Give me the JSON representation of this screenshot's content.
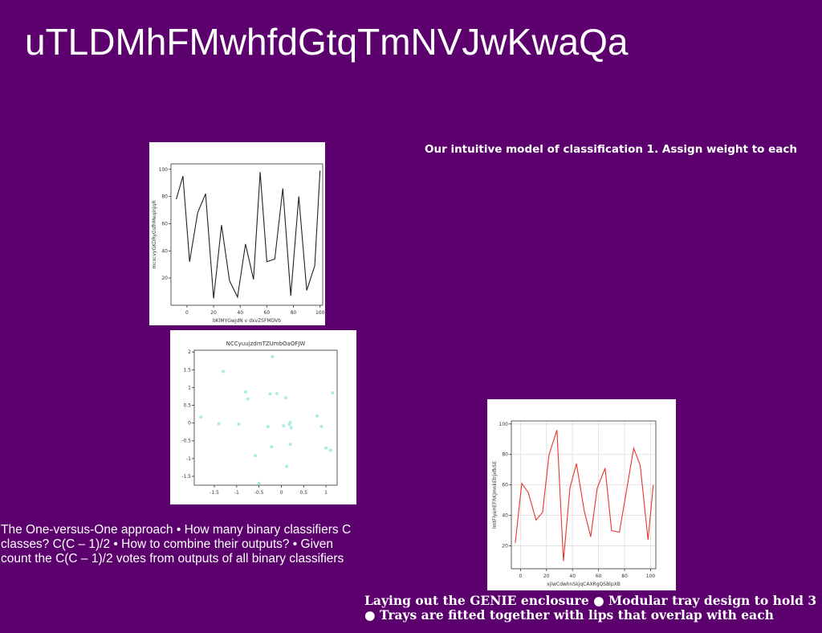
{
  "slide": {
    "title": "uTLDMhFMwhfdGtqTmNVJwKwaQa",
    "right_top_text": "Our intuitive model of classification 1. Assign weight to each",
    "left_bottom_text": "The One-versus-One approach • How many binary classifiers C classes? C(C – 1)/2 • How to combine their outputs? • Given count the C(C – 1)/2 votes from outputs of all binary classifiers",
    "bottom_right_line1": "Laying out the GENIE enclosure ● Modular tray design to hold 3",
    "bottom_right_line2": "● Trays are fitted together with lips that overlap with each",
    "colors": {
      "background": "#5b006d",
      "text": "#ffffff"
    }
  },
  "chart_data": [
    {
      "type": "line",
      "title": "",
      "xlabel": "bKlMYGwjdN v dxvZSFMDVb",
      "ylabel": "mcxcvyGKDRyGsfhMeqinjqR",
      "xlim": [
        -12,
        102
      ],
      "ylim": [
        0,
        104
      ],
      "xticks": [
        0,
        20,
        40,
        60,
        80,
        100
      ],
      "yticks": [
        20,
        40,
        60,
        80,
        100
      ],
      "color": "#222222",
      "grid": false,
      "x": [
        -8,
        -3,
        2,
        8,
        14,
        20,
        26,
        32,
        38,
        44,
        50,
        55,
        60,
        66,
        72,
        78,
        84,
        90,
        96,
        100
      ],
      "y": [
        78,
        95,
        32,
        68,
        82,
        5,
        59,
        18,
        6,
        45,
        19,
        98,
        32,
        34,
        86,
        7,
        80,
        11,
        29,
        99
      ]
    },
    {
      "type": "scatter",
      "title": "NCCyuujzdmTZUmbOaOFJW",
      "xlabel": "",
      "ylabel": "",
      "xlim": [
        -1.95,
        1.25
      ],
      "ylim": [
        -1.75,
        2.05
      ],
      "xticks": [
        -1.5,
        -1.0,
        -0.5,
        0.0,
        0.5,
        1.0
      ],
      "yticks": [
        -1.5,
        -1.0,
        -0.5,
        0.0,
        0.5,
        1.0,
        1.5,
        2.0
      ],
      "color": "#a8eee0",
      "grid": false,
      "x": [
        -1.8,
        -1.4,
        -1.3,
        -0.95,
        -0.8,
        -0.75,
        -0.58,
        -0.5,
        -0.3,
        -0.25,
        -0.22,
        -0.2,
        -0.1,
        0.05,
        0.1,
        0.12,
        0.18,
        0.2,
        0.2,
        0.22,
        0.8,
        0.9,
        1.0,
        1.1,
        1.15
      ],
      "y": [
        0.17,
        -0.02,
        1.45,
        -0.03,
        0.87,
        0.68,
        -0.92,
        -1.7,
        -0.1,
        0.82,
        -0.67,
        1.87,
        0.83,
        -0.08,
        0.71,
        -1.22,
        -0.04,
        0.02,
        -0.6,
        -0.13,
        0.2,
        -0.1,
        -0.7,
        -0.77,
        0.85
      ]
    },
    {
      "type": "line",
      "title": "",
      "xlabel": "xjlwCdwhnSkjqCAXRgQSBlpXB",
      "ylabel": "lmtFlyeHEFRKJmnkEtrjxfkSE",
      "xlim": [
        -7,
        104
      ],
      "ylim": [
        5,
        102
      ],
      "xticks": [
        0,
        20,
        40,
        60,
        80,
        100
      ],
      "yticks": [
        20,
        40,
        60,
        80,
        100
      ],
      "color": "#e8342a",
      "grid": true,
      "x": [
        -4,
        1,
        6,
        12,
        17,
        22,
        28,
        33,
        38,
        43,
        49,
        54,
        59,
        65,
        70,
        76,
        81,
        87,
        92,
        98,
        102
      ],
      "y": [
        22,
        61,
        55,
        37,
        42,
        80,
        96,
        10,
        58,
        74,
        43,
        26,
        58,
        71,
        30,
        29,
        54,
        84,
        73,
        24,
        60
      ]
    }
  ]
}
